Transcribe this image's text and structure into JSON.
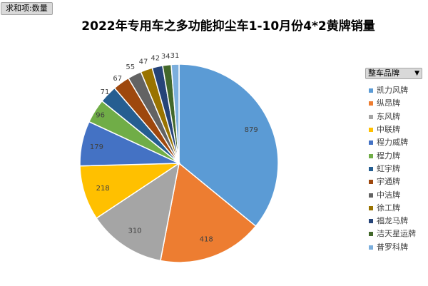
{
  "pivot_field_button": "求和项:数量",
  "legend_field_button": "整车品牌",
  "chart_data": {
    "type": "pie",
    "title": "2022年专用车之多功能抑尘车1-10月份4*2黄牌销量",
    "categories": [
      "凯力风牌",
      "纵昂牌",
      "东风牌",
      "中联牌",
      "程力威牌",
      "程力牌",
      "虹宇牌",
      "宇通牌",
      "中洁牌",
      "徐工牌",
      "福龙马牌",
      "洁天星运牌",
      "普罗科牌"
    ],
    "values": [
      879,
      418,
      310,
      218,
      179,
      96,
      71,
      67,
      55,
      47,
      42,
      34,
      31
    ],
    "colors": [
      "#5b9bd5",
      "#ed7d31",
      "#a5a5a5",
      "#ffc000",
      "#4472c4",
      "#70ad47",
      "#255e91",
      "#9e480e",
      "#636363",
      "#997300",
      "#264478",
      "#43682b",
      "#7cafdd"
    ],
    "legend_position": "right",
    "start_angle_deg": 0,
    "direction": "clockwise"
  }
}
